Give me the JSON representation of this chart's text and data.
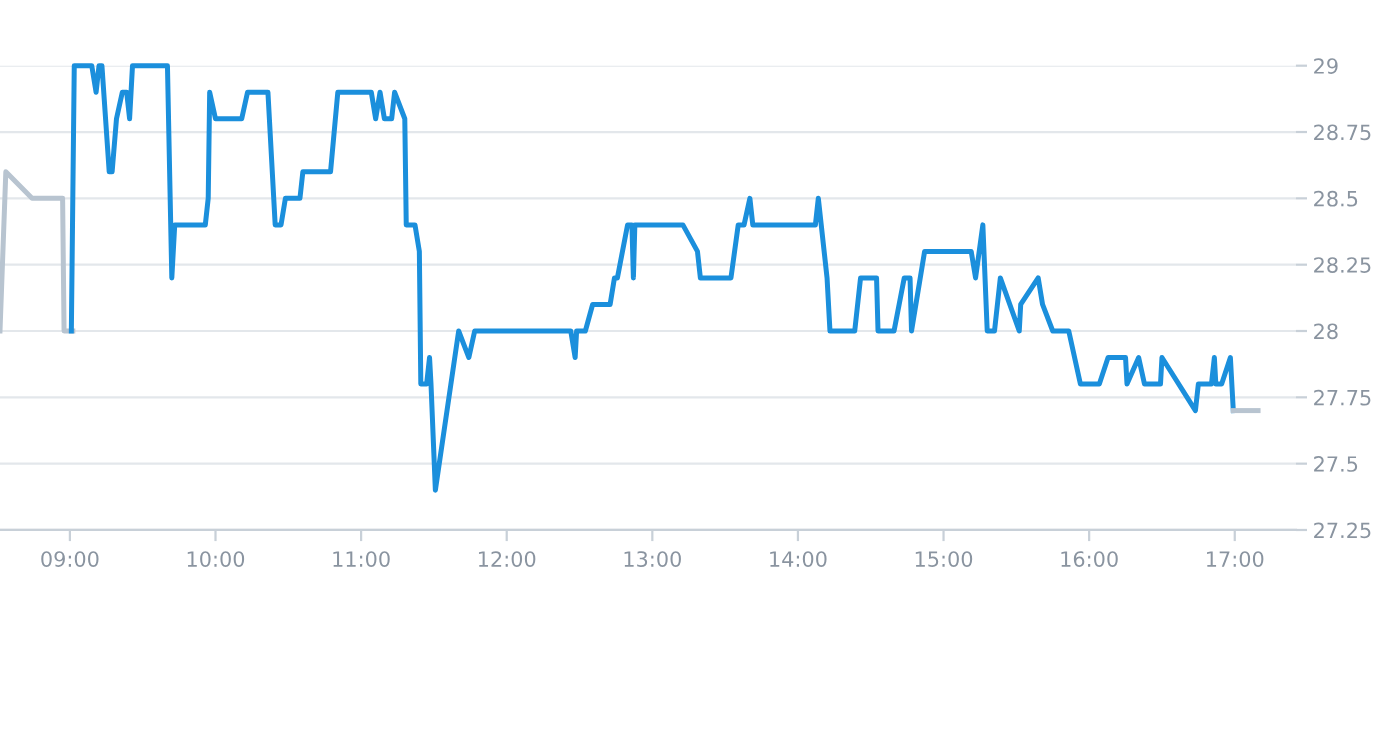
{
  "chart_data": {
    "type": "line",
    "xlim": [
      8.52,
      17.42
    ],
    "ylim": [
      27.25,
      29
    ],
    "xticks": [
      {
        "value": 9,
        "label": "09:00"
      },
      {
        "value": 10,
        "label": "10:00"
      },
      {
        "value": 11,
        "label": "11:00"
      },
      {
        "value": 12,
        "label": "12:00"
      },
      {
        "value": 13,
        "label": "13:00"
      },
      {
        "value": 14,
        "label": "14:00"
      },
      {
        "value": 15,
        "label": "15:00"
      },
      {
        "value": 16,
        "label": "16:00"
      },
      {
        "value": 17,
        "label": "17:00"
      }
    ],
    "yticks": [
      27.25,
      27.5,
      27.75,
      28,
      28.25,
      28.5,
      28.75,
      29
    ],
    "grid": "y",
    "legend": false,
    "marker": "none",
    "line_style": "solid",
    "series": [
      {
        "color": "#b8c4d0",
        "x": [
          8.52,
          8.56,
          8.74,
          8.95,
          8.96,
          9.02
        ],
        "values": [
          28.0,
          28.6,
          28.5,
          28.5,
          28.0,
          28.0
        ]
      },
      {
        "color": "#1b8fdc",
        "x": [
          9.01,
          9.03,
          9.15,
          9.18,
          9.2,
          9.22,
          9.27,
          9.29,
          9.32,
          9.36,
          9.39,
          9.41,
          9.43,
          9.67,
          9.7,
          9.72,
          9.93,
          9.95,
          9.96,
          10.0,
          10.18,
          10.22,
          10.36,
          10.41,
          10.45,
          10.48,
          10.58,
          10.6,
          10.79,
          10.84,
          11.07,
          11.1,
          11.13,
          11.16,
          11.21,
          11.23,
          11.3,
          11.31,
          11.37,
          11.4,
          11.41,
          11.45,
          11.47,
          11.48,
          11.51,
          11.67,
          11.74,
          11.78,
          12.44,
          12.47,
          12.48,
          12.54,
          12.59,
          12.71,
          12.74,
          12.76,
          12.83,
          12.86,
          12.87,
          12.88,
          13.21,
          13.31,
          13.33,
          13.54,
          13.59,
          13.63,
          13.67,
          13.69,
          14.12,
          14.14,
          14.2,
          14.22,
          14.39,
          14.43,
          14.54,
          14.55,
          14.66,
          14.73,
          14.77,
          14.78,
          14.87,
          15.19,
          15.22,
          15.27,
          15.3,
          15.35,
          15.39,
          15.52,
          15.53,
          15.65,
          15.68,
          15.75,
          15.86,
          15.94,
          16.07,
          16.13,
          16.25,
          16.26,
          16.34,
          16.38,
          16.49,
          16.5,
          16.73,
          16.75,
          16.84,
          16.86,
          16.87,
          16.91,
          16.97,
          16.99
        ],
        "values": [
          28.0,
          29.0,
          29.0,
          28.9,
          29.0,
          29.0,
          28.6,
          28.6,
          28.8,
          28.9,
          28.9,
          28.8,
          29.0,
          29.0,
          28.2,
          28.4,
          28.4,
          28.5,
          28.9,
          28.8,
          28.8,
          28.9,
          28.9,
          28.4,
          28.4,
          28.5,
          28.5,
          28.6,
          28.6,
          28.9,
          28.9,
          28.8,
          28.9,
          28.8,
          28.8,
          28.9,
          28.8,
          28.4,
          28.4,
          28.3,
          27.8,
          27.8,
          27.9,
          27.8,
          27.4,
          28.0,
          27.9,
          28.0,
          28.0,
          27.9,
          28.0,
          28.0,
          28.1,
          28.1,
          28.2,
          28.2,
          28.4,
          28.4,
          28.2,
          28.4,
          28.4,
          28.3,
          28.2,
          28.2,
          28.4,
          28.4,
          28.5,
          28.4,
          28.4,
          28.5,
          28.2,
          28.0,
          28.0,
          28.2,
          28.2,
          28.0,
          28.0,
          28.2,
          28.2,
          28.0,
          28.3,
          28.3,
          28.2,
          28.4,
          28.0,
          28.0,
          28.2,
          28.0,
          28.1,
          28.2,
          28.1,
          28.0,
          28.0,
          27.8,
          27.8,
          27.9,
          27.9,
          27.8,
          27.9,
          27.8,
          27.8,
          27.9,
          27.7,
          27.8,
          27.8,
          27.9,
          27.8,
          27.8,
          27.9,
          27.7
        ]
      },
      {
        "color": "#b8c4d0",
        "x": [
          16.99,
          17.16
        ],
        "values": [
          27.7,
          27.7
        ]
      }
    ]
  }
}
